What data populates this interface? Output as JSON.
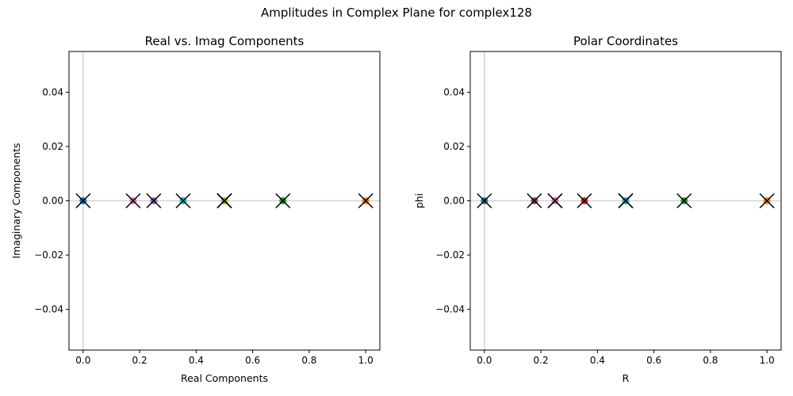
{
  "figure_title": "Amplitudes in Complex Plane for complex128",
  "chart_data": [
    {
      "type": "scatter",
      "title": "Real vs. Imag Components",
      "xlabel": "Real Components",
      "ylabel": "Imaginary Components",
      "xlim": [
        -0.05,
        1.05
      ],
      "ylim": [
        -0.055,
        0.055
      ],
      "xticks": [
        "0.0",
        "0.2",
        "0.4",
        "0.6",
        "0.8",
        "1.0"
      ],
      "xtick_values": [
        0,
        0.2,
        0.4,
        0.6,
        0.8,
        1.0
      ],
      "yticks": [
        "−0.04",
        "−0.02",
        "0.00",
        "0.02",
        "0.04"
      ],
      "ytick_values": [
        -0.04,
        -0.02,
        0,
        0.02,
        0.04
      ],
      "reference_lines": {
        "x": 0,
        "y": 0
      },
      "points": [
        {
          "x": 0.0,
          "y": 0,
          "color": "#1f77b4"
        },
        {
          "x": 1.0,
          "y": 0,
          "color": "#ff7f0e"
        },
        {
          "x": 0.707,
          "y": 0,
          "color": "#2ca02c"
        },
        {
          "x": 0.5,
          "y": 0,
          "color": "#d62728"
        },
        {
          "x": 0.25,
          "y": 0,
          "color": "#9467bd"
        },
        {
          "x": 0.5,
          "y": 0,
          "color": "#8c564b"
        },
        {
          "x": 0.177,
          "y": 0,
          "color": "#e377c2"
        },
        {
          "x": 0.5,
          "y": 0,
          "color": "#7f7f7f"
        },
        {
          "x": 0.5,
          "y": 0,
          "color": "#bcbd22"
        },
        {
          "x": 0.354,
          "y": 0,
          "color": "#17becf"
        }
      ]
    },
    {
      "type": "scatter",
      "title": "Polar Coordinates",
      "xlabel": "R",
      "ylabel": "phi",
      "xlim": [
        -0.05,
        1.05
      ],
      "ylim": [
        -0.055,
        0.055
      ],
      "xticks": [
        "0.0",
        "0.2",
        "0.4",
        "0.6",
        "0.8",
        "1.0"
      ],
      "xtick_values": [
        0,
        0.2,
        0.4,
        0.6,
        0.8,
        1.0
      ],
      "yticks": [
        "−0.04",
        "−0.02",
        "0.00",
        "0.02",
        "0.04"
      ],
      "ytick_values": [
        -0.04,
        -0.02,
        0,
        0.02,
        0.04
      ],
      "reference_lines": {
        "x": 0,
        "y": 0
      },
      "points": [
        {
          "x": 0.0,
          "y": 0,
          "color": "#1f77b4"
        },
        {
          "x": 1.0,
          "y": 0,
          "color": "#ff7f0e"
        },
        {
          "x": 0.707,
          "y": 0,
          "color": "#2ca02c"
        },
        {
          "x": 0.354,
          "y": 0,
          "color": "#d62728"
        },
        {
          "x": 0.25,
          "y": 0,
          "color": "#9467bd"
        },
        {
          "x": 0.177,
          "y": 0,
          "color": "#8c564b"
        },
        {
          "x": 0.25,
          "y": 0,
          "color": "#e377c2"
        },
        {
          "x": 0.5,
          "y": 0,
          "color": "#7f7f7f"
        },
        {
          "x": 0.5,
          "y": 0,
          "color": "#bcbd22"
        },
        {
          "x": 0.5,
          "y": 0,
          "color": "#17becf"
        }
      ]
    }
  ]
}
